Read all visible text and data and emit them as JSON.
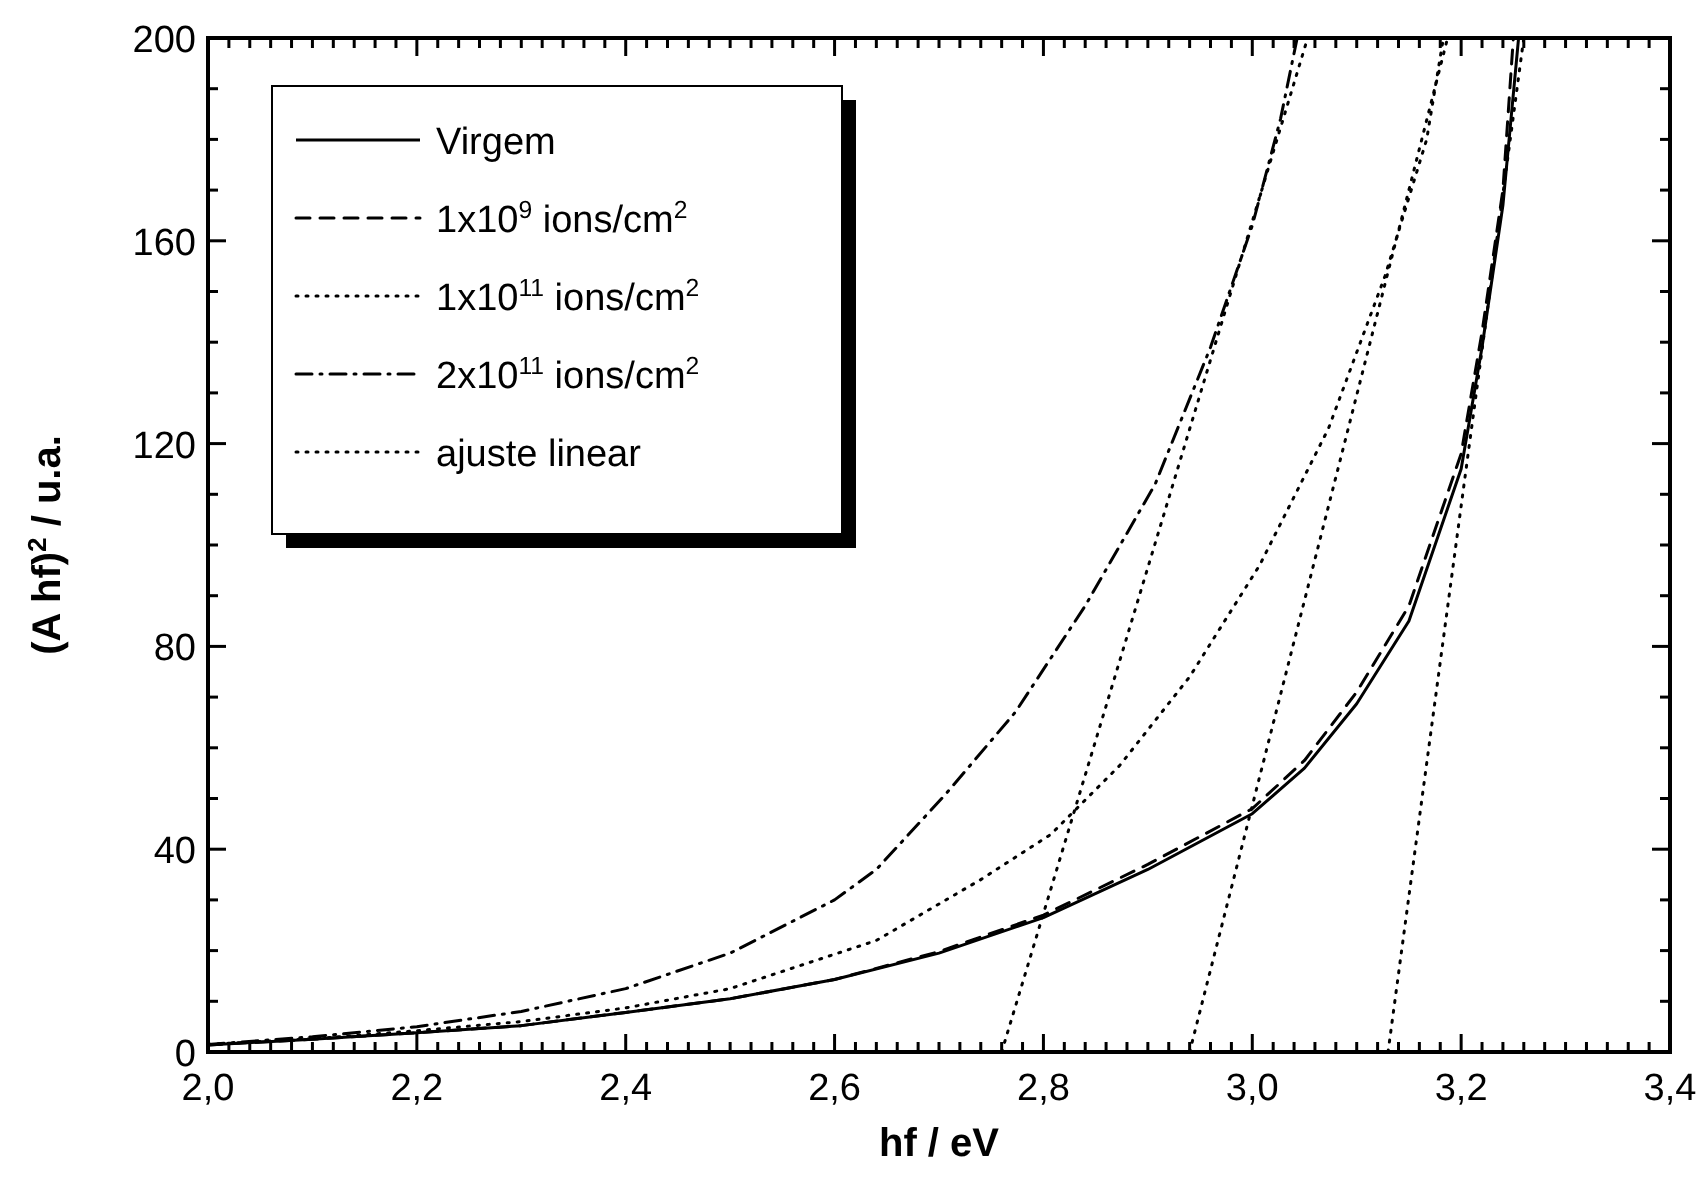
{
  "chart_data": {
    "type": "line",
    "xlabel": "hf / eV",
    "ylabel": "(A hf)$^{2}$ / u.a.",
    "xlim": [
      2.0,
      3.4
    ],
    "ylim": [
      0,
      200
    ],
    "xticks": [
      {
        "value": 2.0,
        "label": "2,0"
      },
      {
        "value": 2.2,
        "label": "2,2"
      },
      {
        "value": 2.4,
        "label": "2,4"
      },
      {
        "value": 2.6,
        "label": "2,6"
      },
      {
        "value": 2.8,
        "label": "2,8"
      },
      {
        "value": 3.0,
        "label": "3,0"
      },
      {
        "value": 3.2,
        "label": "3,2"
      },
      {
        "value": 3.4,
        "label": "3,4"
      }
    ],
    "yticks": [
      0,
      40,
      80,
      120,
      160,
      200
    ],
    "legend": "top left",
    "grid": false,
    "series": [
      {
        "name": "Virgem",
        "color": "#000000",
        "line_style": "solid",
        "x": [
          2.0,
          2.1,
          2.2,
          2.3,
          2.4,
          2.5,
          2.6,
          2.7,
          2.8,
          2.9,
          3.0,
          3.05,
          3.1,
          3.15,
          3.2,
          3.22,
          3.24,
          3.255
        ],
        "values": [
          1.4,
          2.5,
          3.8,
          5.2,
          7.8,
          10.5,
          14.3,
          19.5,
          26.5,
          36,
          47,
          56,
          68.7,
          85,
          115,
          139,
          167,
          200
        ]
      },
      {
        "name": "1x10$^{9}$ ions/cm$^{2}$",
        "color": "#000000",
        "line_style": "dashed",
        "x": [
          2.0,
          2.1,
          2.2,
          2.3,
          2.4,
          2.5,
          2.6,
          2.7,
          2.8,
          2.9,
          3.0,
          3.05,
          3.1,
          3.15,
          3.2,
          3.22,
          3.24,
          3.25
        ],
        "values": [
          1.4,
          2.5,
          3.8,
          5.2,
          7.8,
          10.5,
          14.3,
          19.8,
          27,
          37,
          48,
          57.5,
          71,
          88,
          118,
          142,
          170,
          200
        ]
      },
      {
        "name": "1x10$^{11}$ ions/cm$^{2}$",
        "color": "#000000",
        "line_style": "dotted",
        "x": [
          2.0,
          2.1,
          2.2,
          2.3,
          2.4,
          2.5,
          2.64,
          2.74,
          2.807,
          2.873,
          2.94,
          3.007,
          3.073,
          3.127,
          3.167,
          3.183
        ],
        "values": [
          1.5,
          2.6,
          4.2,
          6,
          8.7,
          12.5,
          22,
          34,
          42.9,
          56.5,
          74,
          96,
          123,
          153,
          180,
          200
        ]
      },
      {
        "name": "2x10$^{11}$ ions/cm$^{2}$",
        "color": "#000000",
        "line_style": "dashdot",
        "x": [
          2.0,
          2.1,
          2.2,
          2.3,
          2.4,
          2.5,
          2.6,
          2.64,
          2.707,
          2.773,
          2.84,
          2.907,
          2.96,
          3.0,
          3.027,
          3.043
        ],
        "values": [
          1.5,
          3,
          5,
          8,
          12.5,
          19.5,
          30,
          36,
          51,
          67,
          88,
          112,
          139,
          163,
          184,
          200
        ]
      },
      {
        "name": "ajuste linear",
        "color": "#000000",
        "line_style": "dotted",
        "x": [
          2.76,
          3.053
        ],
        "values": [
          0,
          200
        ]
      },
      {
        "color": "#000000",
        "line_style": "dotted",
        "x": [
          2.94,
          3.187
        ],
        "values": [
          0,
          200
        ]
      },
      {
        "color": "#000000",
        "line_style": "dotted",
        "x": [
          3.13,
          3.26
        ],
        "values": [
          0,
          200
        ]
      }
    ]
  }
}
